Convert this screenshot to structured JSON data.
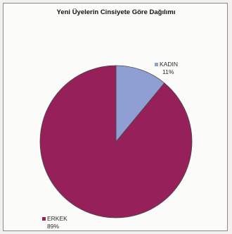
{
  "chart_data": {
    "type": "pie",
    "title": "Yeni Üyelerin Cinsiyete Göre Dağılımı",
    "slices": [
      {
        "name": "KADIN",
        "value": 11,
        "value_label": "11%",
        "color": "#8f9fd4"
      },
      {
        "name": "ERKEK",
        "value": 89,
        "value_label": "89%",
        "color": "#96205a"
      }
    ],
    "start_angle": "12 o'clock",
    "direction": "clockwise",
    "legend": "data labels with small color markers"
  }
}
